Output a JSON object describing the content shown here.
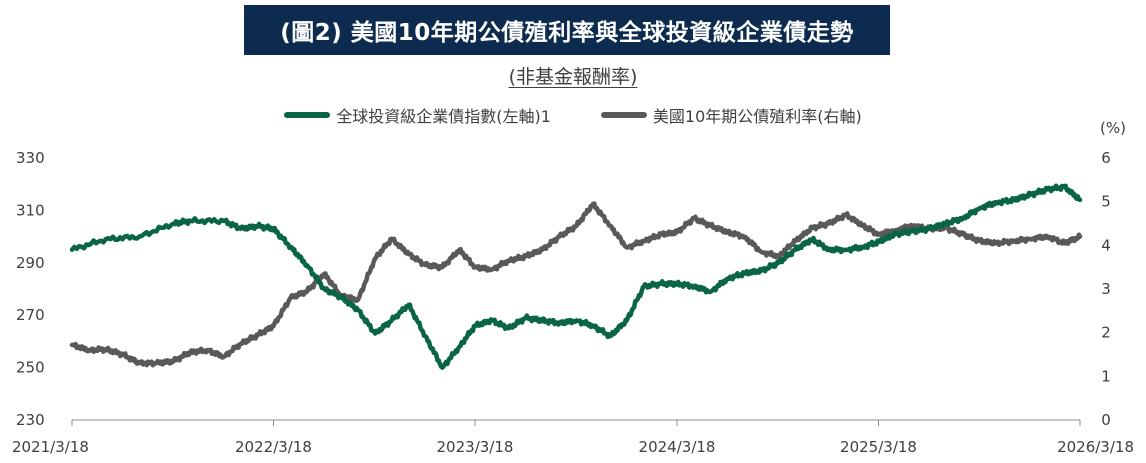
{
  "title": "(圖2) 美國10年期公債殖利率與全球投資級企業債走勢",
  "subtitle": "(非基金報酬率)",
  "chart_data": {
    "type": "line",
    "x_ticks": [
      "2021/3/18",
      "2022/3/18",
      "2023/3/18",
      "2024/3/18",
      "2025/3/18",
      "2026/3/18"
    ],
    "y_left": {
      "ticks": [
        "330",
        "310",
        "290",
        "270",
        "250",
        "230"
      ],
      "range": [
        230,
        330
      ]
    },
    "y_right": {
      "unit": "(%)",
      "ticks": [
        "6",
        "5",
        "4",
        "3",
        "2",
        "1",
        "0"
      ],
      "range": [
        0,
        6
      ]
    },
    "series": [
      {
        "name": "全球投資級企業債指數(左軸)1",
        "color": "#0a6446",
        "axis": "left",
        "points": [
          [
            "2021-03-18",
            295
          ],
          [
            "2021-05-18",
            299
          ],
          [
            "2021-07-18",
            300
          ],
          [
            "2021-09-18",
            305
          ],
          [
            "2021-10-18",
            306
          ],
          [
            "2021-12-18",
            306
          ],
          [
            "2022-01-18",
            303
          ],
          [
            "2022-02-18",
            304
          ],
          [
            "2022-03-18",
            303
          ],
          [
            "2022-04-18",
            296
          ],
          [
            "2022-05-18",
            289
          ],
          [
            "2022-06-18",
            280
          ],
          [
            "2022-07-18",
            277
          ],
          [
            "2022-08-18",
            272
          ],
          [
            "2022-09-18",
            263
          ],
          [
            "2022-10-18",
            268
          ],
          [
            "2022-11-18",
            274
          ],
          [
            "2022-12-18",
            262
          ],
          [
            "2023-01-18",
            250
          ],
          [
            "2023-02-18",
            258
          ],
          [
            "2023-03-18",
            266
          ],
          [
            "2023-04-18",
            268
          ],
          [
            "2023-05-18",
            265
          ],
          [
            "2023-06-18",
            269
          ],
          [
            "2023-07-18",
            268
          ],
          [
            "2023-08-18",
            267
          ],
          [
            "2023-09-18",
            268
          ],
          [
            "2023-10-18",
            266
          ],
          [
            "2023-11-18",
            262
          ],
          [
            "2023-12-18",
            268
          ],
          [
            "2024-01-18",
            281
          ],
          [
            "2024-02-18",
            282
          ],
          [
            "2024-03-18",
            282
          ],
          [
            "2024-04-18",
            281
          ],
          [
            "2024-05-18",
            279
          ],
          [
            "2024-06-18",
            284
          ],
          [
            "2024-07-18",
            286
          ],
          [
            "2024-08-18",
            287
          ],
          [
            "2024-09-18",
            290
          ],
          [
            "2024-10-18",
            295
          ],
          [
            "2024-11-18",
            299
          ],
          [
            "2024-12-18",
            295
          ],
          [
            "2025-01-18",
            295
          ],
          [
            "2025-02-18",
            296
          ],
          [
            "2025-03-18",
            298
          ],
          [
            "2025-04-18",
            301
          ],
          [
            "2025-05-18",
            302
          ],
          [
            "2025-06-18",
            303
          ],
          [
            "2025-07-18",
            305
          ],
          [
            "2025-08-18",
            307
          ],
          [
            "2025-09-18",
            311
          ],
          [
            "2025-10-18",
            313
          ],
          [
            "2025-11-18",
            314
          ],
          [
            "2025-12-18",
            316
          ],
          [
            "2026-01-18",
            318
          ],
          [
            "2026-02-18",
            319
          ],
          [
            "2026-03-18",
            314
          ]
        ]
      },
      {
        "name": "美國10年期公債殖利率(右軸)",
        "color": "#595959",
        "axis": "right",
        "points": [
          [
            "2021-03-18",
            1.72
          ],
          [
            "2021-04-18",
            1.6
          ],
          [
            "2021-05-18",
            1.62
          ],
          [
            "2021-06-18",
            1.5
          ],
          [
            "2021-07-18",
            1.3
          ],
          [
            "2021-08-18",
            1.3
          ],
          [
            "2021-09-18",
            1.35
          ],
          [
            "2021-10-18",
            1.55
          ],
          [
            "2021-11-18",
            1.6
          ],
          [
            "2021-12-18",
            1.45
          ],
          [
            "2022-01-18",
            1.75
          ],
          [
            "2022-02-18",
            1.95
          ],
          [
            "2022-03-18",
            2.15
          ],
          [
            "2022-04-18",
            2.8
          ],
          [
            "2022-05-18",
            2.95
          ],
          [
            "2022-06-18",
            3.35
          ],
          [
            "2022-07-18",
            2.85
          ],
          [
            "2022-08-18",
            2.75
          ],
          [
            "2022-09-18",
            3.7
          ],
          [
            "2022-10-18",
            4.15
          ],
          [
            "2022-11-18",
            3.8
          ],
          [
            "2022-12-18",
            3.55
          ],
          [
            "2023-01-18",
            3.5
          ],
          [
            "2023-02-18",
            3.9
          ],
          [
            "2023-03-18",
            3.5
          ],
          [
            "2023-04-18",
            3.45
          ],
          [
            "2023-05-18",
            3.65
          ],
          [
            "2023-06-18",
            3.75
          ],
          [
            "2023-07-18",
            3.9
          ],
          [
            "2023-08-18",
            4.2
          ],
          [
            "2023-09-18",
            4.45
          ],
          [
            "2023-10-18",
            4.95
          ],
          [
            "2023-11-18",
            4.45
          ],
          [
            "2023-12-18",
            3.95
          ],
          [
            "2024-01-18",
            4.1
          ],
          [
            "2024-02-18",
            4.25
          ],
          [
            "2024-03-18",
            4.3
          ],
          [
            "2024-04-18",
            4.62
          ],
          [
            "2024-05-18",
            4.45
          ],
          [
            "2024-06-18",
            4.3
          ],
          [
            "2024-07-18",
            4.2
          ],
          [
            "2024-08-18",
            3.85
          ],
          [
            "2024-09-18",
            3.75
          ],
          [
            "2024-10-18",
            4.1
          ],
          [
            "2024-11-18",
            4.4
          ],
          [
            "2024-12-18",
            4.5
          ],
          [
            "2025-01-18",
            4.7
          ],
          [
            "2025-02-18",
            4.45
          ],
          [
            "2025-03-18",
            4.25
          ],
          [
            "2025-04-18",
            4.35
          ],
          [
            "2025-05-18",
            4.45
          ],
          [
            "2025-06-18",
            4.38
          ],
          [
            "2025-07-18",
            4.4
          ],
          [
            "2025-08-18",
            4.25
          ],
          [
            "2025-09-18",
            4.1
          ],
          [
            "2025-10-18",
            4.05
          ],
          [
            "2025-11-18",
            4.1
          ],
          [
            "2025-12-18",
            4.15
          ],
          [
            "2026-01-18",
            4.2
          ],
          [
            "2026-02-18",
            4.05
          ],
          [
            "2026-03-18",
            4.2
          ]
        ]
      }
    ]
  }
}
